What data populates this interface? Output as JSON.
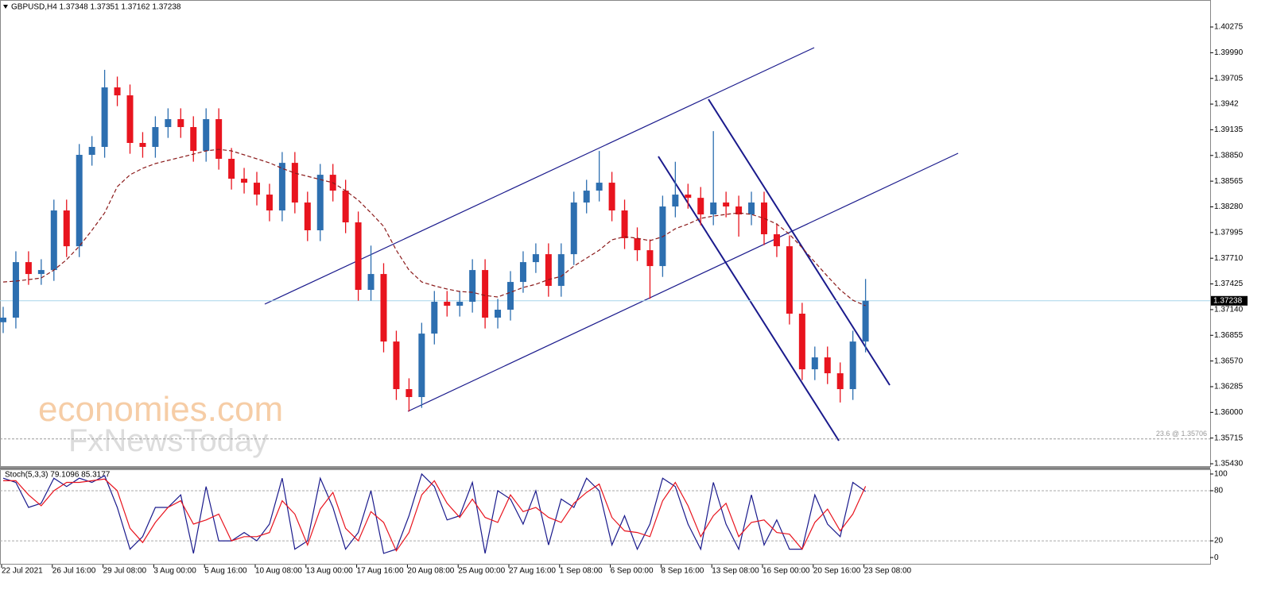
{
  "chart_data": {
    "type": "candlestick",
    "header": "GBPUSD,H4  1.37348 1.37351 1.37162 1.37238",
    "up_color": "#2d6fb0",
    "down_color": "#e8141e",
    "categories": [
      "22 Jul 2021",
      null,
      null,
      null,
      "26 Jul 16:00",
      null,
      null,
      null,
      "29 Jul 08:00",
      null,
      null,
      null,
      "3 Aug 00:00",
      null,
      null,
      null,
      "5 Aug 16:00",
      null,
      null,
      null,
      "10 Aug 08:00",
      null,
      null,
      null,
      "13 Aug 00:00",
      null,
      null,
      null,
      "17 Aug 16:00",
      null,
      null,
      null,
      "20 Aug 08:00",
      null,
      null,
      null,
      "25 Aug 00:00",
      null,
      null,
      null,
      "27 Aug 16:00",
      null,
      null,
      null,
      "1 Sep 08:00",
      null,
      null,
      null,
      "6 Sep 00:00",
      null,
      null,
      null,
      "8 Sep 16:00",
      null,
      null,
      null,
      "13 Sep 08:00",
      null,
      null,
      null,
      "16 Sep 00:00",
      null,
      null,
      null,
      "20 Sep 16:00",
      null,
      null,
      null,
      "23 Sep 08:00"
    ],
    "open": [
      1.37,
      1.37051,
      1.37667,
      1.37535,
      1.37579,
      1.3824,
      1.37843,
      1.38857,
      1.38945,
      1.39605,
      1.39517,
      1.38989,
      1.38945,
      1.39165,
      1.39253,
      1.39165,
      1.38901,
      1.39253,
      1.38813,
      1.38592,
      1.38548,
      1.38416,
      1.3824,
      1.38768,
      1.38328,
      1.3802,
      1.38636,
      1.3846,
      1.38108,
      1.37359,
      1.37535,
      1.36786,
      1.36258,
      1.3617,
      1.36874,
      1.37227,
      1.37183,
      1.37227,
      1.37579,
      1.37051,
      1.37139,
      1.37447,
      1.37667,
      1.37755,
      1.37403,
      1.37755,
      1.38328,
      1.3846,
      1.38548,
      1.3824,
      1.37932,
      1.37799,
      1.37623,
      1.38284,
      1.38416,
      1.3838,
      1.38196,
      1.38328,
      1.38284,
      1.38196,
      1.38328,
      1.37976,
      1.37843,
      1.37095,
      1.36478,
      1.3661,
      1.36434,
      1.36258,
      1.36786
    ],
    "high": [
      1.37171,
      1.37787,
      1.37787,
      1.37699,
      1.3836,
      1.3836,
      1.38977,
      1.39065,
      1.398,
      1.39725,
      1.39637,
      1.39109,
      1.39285,
      1.39373,
      1.39373,
      1.39285,
      1.39373,
      1.39373,
      1.38933,
      1.38712,
      1.38668,
      1.38536,
      1.38888,
      1.38888,
      1.38448,
      1.38756,
      1.38756,
      1.3858,
      1.38228,
      1.3785,
      1.37655,
      1.36906,
      1.36378,
      1.36994,
      1.37347,
      1.37347,
      1.37347,
      1.37699,
      1.37699,
      1.37259,
      1.37567,
      1.37787,
      1.37875,
      1.37875,
      1.37875,
      1.38448,
      1.3858,
      1.389,
      1.38668,
      1.3836,
      1.38052,
      1.37919,
      1.38404,
      1.3878,
      1.38536,
      1.385,
      1.3912,
      1.38448,
      1.38404,
      1.38448,
      1.38448,
      1.38096,
      1.37963,
      1.37215,
      1.3673,
      1.3673,
      1.36554,
      1.36906,
      1.3748
    ],
    "low": [
      1.3688,
      1.36931,
      1.37415,
      1.37415,
      1.37459,
      1.37723,
      1.37723,
      1.38737,
      1.38825,
      1.39397,
      1.38869,
      1.38825,
      1.38825,
      1.39045,
      1.39045,
      1.38781,
      1.38781,
      1.38693,
      1.38472,
      1.38428,
      1.38296,
      1.3812,
      1.3812,
      1.38208,
      1.379,
      1.379,
      1.3834,
      1.37988,
      1.37239,
      1.37239,
      1.36666,
      1.36138,
      1.3601,
      1.3605,
      1.36754,
      1.37063,
      1.37063,
      1.37107,
      1.36931,
      1.36931,
      1.37019,
      1.37327,
      1.37547,
      1.37283,
      1.37283,
      1.37635,
      1.38208,
      1.3834,
      1.3812,
      1.37812,
      1.37679,
      1.3726,
      1.37503,
      1.38164,
      1.3826,
      1.38076,
      1.38076,
      1.38164,
      1.3795,
      1.38076,
      1.37856,
      1.37723,
      1.36975,
      1.36358,
      1.36358,
      1.36314,
      1.3611,
      1.36138,
      1.36666
    ],
    "close": [
      1.37051,
      1.37667,
      1.37535,
      1.37579,
      1.3824,
      1.37843,
      1.38857,
      1.38945,
      1.39605,
      1.39517,
      1.38989,
      1.38945,
      1.39165,
      1.39253,
      1.39165,
      1.38901,
      1.39253,
      1.38813,
      1.38592,
      1.38548,
      1.38416,
      1.3824,
      1.38768,
      1.38328,
      1.3802,
      1.38636,
      1.3846,
      1.38108,
      1.37359,
      1.37535,
      1.36786,
      1.36258,
      1.3617,
      1.36874,
      1.37227,
      1.37183,
      1.37227,
      1.37579,
      1.37051,
      1.37139,
      1.37447,
      1.37667,
      1.37755,
      1.37403,
      1.37755,
      1.38328,
      1.3846,
      1.38548,
      1.3824,
      1.37932,
      1.37799,
      1.37623,
      1.38284,
      1.38416,
      1.3838,
      1.38196,
      1.38328,
      1.38284,
      1.38196,
      1.38328,
      1.37976,
      1.37843,
      1.37095,
      1.36478,
      1.3661,
      1.36434,
      1.36258,
      1.36786,
      1.37238
    ],
    "ma": {
      "color": "#8b1a1a",
      "values": [
        1.37447,
        1.37456,
        1.37473,
        1.37491,
        1.37579,
        1.37694,
        1.37843,
        1.3802,
        1.38213,
        1.38504,
        1.38636,
        1.38707,
        1.3876,
        1.38795,
        1.3883,
        1.38865,
        1.38901,
        1.38918,
        1.38901,
        1.38857,
        1.38813,
        1.38768,
        1.38707,
        1.38654,
        1.38619,
        1.38583,
        1.38548,
        1.3846,
        1.38354,
        1.38213,
        1.38064,
        1.37799,
        1.37579,
        1.37447,
        1.37403,
        1.37368,
        1.37341,
        1.37332,
        1.37297,
        1.3728,
        1.37332,
        1.37385,
        1.37421,
        1.37473,
        1.37509,
        1.37623,
        1.37711,
        1.37799,
        1.37914,
        1.37949,
        1.37932,
        1.37905,
        1.37949,
        1.38037,
        1.3809,
        1.38152,
        1.38178,
        1.38196,
        1.38213,
        1.38196,
        1.38152,
        1.3809,
        1.37976,
        1.37826,
        1.37667,
        1.37509,
        1.37359,
        1.37244,
        1.37183
      ]
    },
    "ylim": [
      1.35395,
      1.40557
    ],
    "yticks": [
      1.40275,
      {
        "value": 1.3999,
        "label": "1.39990"
      },
      1.39705,
      1.3942,
      1.39135,
      {
        "value": 1.3885,
        "label": "1.38850"
      },
      1.38565,
      {
        "value": 1.3828,
        "label": "1.38280"
      },
      1.37995,
      {
        "value": 1.3771,
        "label": "1.37710"
      },
      1.37425,
      {
        "value": 1.3714,
        "label": "1.37140"
      },
      1.36855,
      {
        "value": 1.3657,
        "label": "1.36570"
      },
      1.36285,
      {
        "value": 1.36,
        "label": "1.36000"
      },
      1.35715,
      {
        "value": 1.3543,
        "label": "1.35430"
      }
    ],
    "current_price": 1.37238,
    "level": 1.35706,
    "level_label": "23.6 @ 1.35706",
    "watermark": [
      "economies.com",
      "FxNewsToday"
    ],
    "stochastic": {
      "title": "Stoch(5,3,3) 79.1096 85.3177",
      "main_color": "#1a1a8c",
      "signal_color": "#e8141e",
      "main": [
        95,
        90,
        60,
        65,
        95,
        85,
        95,
        90,
        98,
        60,
        10,
        25,
        60,
        60,
        75,
        5,
        85,
        20,
        20,
        30,
        20,
        40,
        95,
        10,
        20,
        95,
        60,
        10,
        30,
        80,
        5,
        10,
        50,
        100,
        85,
        45,
        50,
        90,
        5,
        80,
        70,
        40,
        80,
        15,
        70,
        60,
        95,
        80,
        15,
        50,
        10,
        40,
        95,
        85,
        40,
        10,
        90,
        40,
        10,
        75,
        15,
        45,
        10,
        10,
        75,
        40,
        25,
        90,
        79.1096
      ],
      "signal": [
        92,
        92,
        75,
        62,
        80,
        90,
        90,
        92,
        94,
        80,
        35,
        18,
        42,
        60,
        68,
        40,
        45,
        52,
        20,
        25,
        25,
        30,
        68,
        52,
        15,
        58,
        78,
        35,
        20,
        55,
        42,
        8,
        30,
        75,
        92,
        65,
        48,
        70,
        48,
        42,
        75,
        55,
        60,
        48,
        42,
        65,
        78,
        88,
        48,
        32,
        30,
        25,
        68,
        90,
        62,
        25,
        50,
        65,
        25,
        42,
        45,
        30,
        28,
        10,
        42,
        58,
        32,
        52,
        85.3177
      ],
      "ylim": [
        -7.5,
        104.7
      ],
      "yticks": [
        0,
        20,
        80,
        100
      ],
      "levels": [
        20,
        80
      ]
    }
  }
}
